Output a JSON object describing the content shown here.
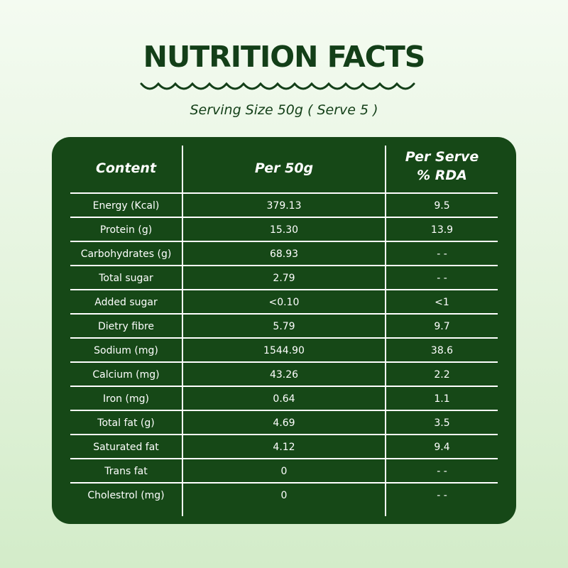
{
  "title": "NUTRITION FACTS",
  "subtitle": "Serving Size 50g ( Serve 5 )",
  "table": {
    "headers": [
      "Content",
      "Per 50g",
      "Per Serve\n% RDA"
    ],
    "rows": [
      [
        "Energy (Kcal)",
        "379.13",
        "9.5"
      ],
      [
        "Protein (g)",
        "15.30",
        "13.9"
      ],
      [
        "Carbohydrates (g)",
        "68.93",
        "- -"
      ],
      [
        "Total sugar",
        "2.79",
        "- -"
      ],
      [
        "Added sugar",
        "<0.10",
        "<1"
      ],
      [
        "Dietry fibre",
        "5.79",
        "9.7"
      ],
      [
        "Sodium (mg)",
        "1544.90",
        "38.6"
      ],
      [
        "Calcium (mg)",
        "43.26",
        "2.2"
      ],
      [
        "Iron (mg)",
        "0.64",
        "1.1"
      ],
      [
        "Total fat (g)",
        "4.69",
        "3.5"
      ],
      [
        "Saturated fat",
        "4.12",
        "9.4"
      ],
      [
        "Trans fat",
        "0",
        "- -"
      ],
      [
        "Cholestrol (mg)",
        "0",
        "- -"
      ]
    ]
  },
  "colors": {
    "panel": "#164817",
    "title": "#133f18",
    "background": "#e3f3dc",
    "text_on_panel": "#ffffff"
  }
}
